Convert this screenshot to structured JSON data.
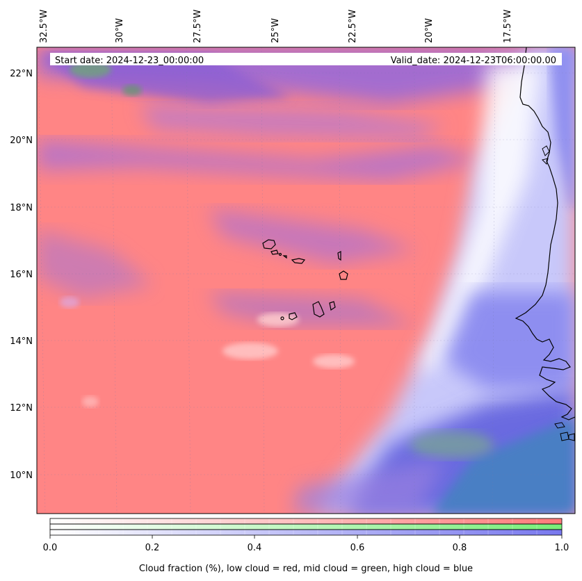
{
  "map": {
    "lon_labels": [
      "32.5°W",
      "30°W",
      "27.5°W",
      "25°W",
      "22.5°W",
      "20°W",
      "17.5°W"
    ],
    "lat_labels": [
      "22°N",
      "20°N",
      "18°N",
      "16°N",
      "14°N",
      "12°N",
      "10°N"
    ],
    "start_date": "Start date: 2024-12-23_00:00:00",
    "valid_date": "Valid_date: 2024-12-23T06:00:00.00",
    "layer_colors": {
      "low_cloud": "#ff8080",
      "mid_cloud": "#80ff80",
      "high_cloud": "#8080ff",
      "ocean_clear": "#4a7fc4"
    }
  },
  "colorbar": {
    "ticks": [
      "0.0",
      "0.2",
      "0.4",
      "0.6",
      "0.8",
      "1.0"
    ],
    "label": "Cloud fraction (%), low cloud = red, mid cloud = green, high cloud = blue"
  }
}
